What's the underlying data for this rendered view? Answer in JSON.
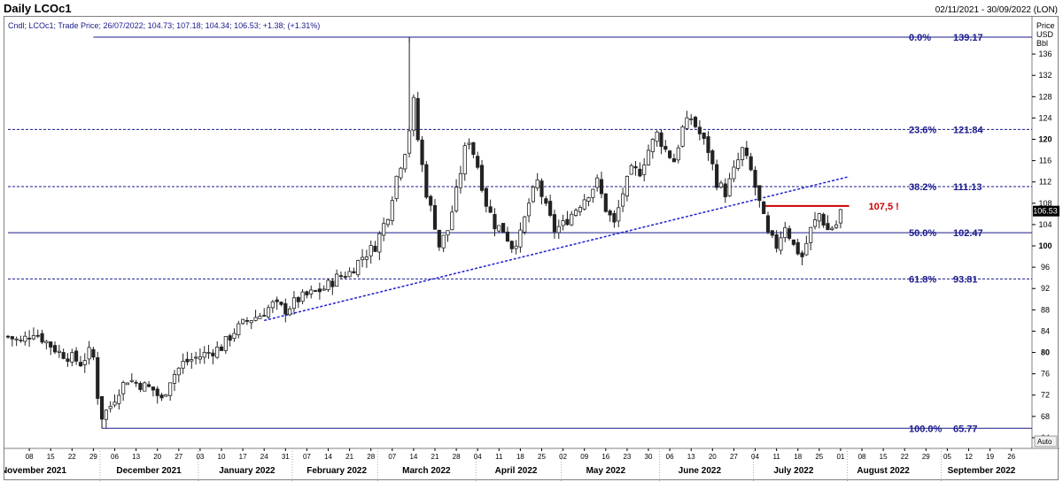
{
  "header": {
    "title": "Daily LCOc1",
    "date_range": "02/11/2021 - 30/09/2022 (LON)",
    "instrument_line": "Cndl; LCOc1; Trade Price; 26/07/2022; 104.73; 107.18; 104.34; 106.53; +1.38; (+1.31%)"
  },
  "axis": {
    "units": [
      "Price",
      "USD",
      "Bbl"
    ],
    "auto_label": "Auto"
  },
  "colors": {
    "fib_line": "#1a1a8c",
    "fib_text": "#1a1a8c",
    "trendline": "#1f1fd0",
    "resistance": "#cc0000",
    "candle": "#222222"
  },
  "chart_data": {
    "type": "candlestick",
    "instrument": "LCOc1",
    "ylim": [
      62,
      140
    ],
    "y_ticks": [
      64,
      68,
      72,
      76,
      80,
      84,
      88,
      92,
      96,
      100,
      104,
      108,
      112,
      116,
      120,
      124,
      128,
      132,
      136
    ],
    "bold_ticks": [
      80,
      100,
      120
    ],
    "last_price": 106.53,
    "day_ticks": [
      {
        "i": 5,
        "label": "08"
      },
      {
        "i": 10,
        "label": "15"
      },
      {
        "i": 15,
        "label": "22"
      },
      {
        "i": 20,
        "label": "29"
      },
      {
        "i": 25,
        "label": "06"
      },
      {
        "i": 30,
        "label": "13"
      },
      {
        "i": 35,
        "label": "20"
      },
      {
        "i": 40,
        "label": "27"
      },
      {
        "i": 45,
        "label": "03"
      },
      {
        "i": 50,
        "label": "10"
      },
      {
        "i": 55,
        "label": "17"
      },
      {
        "i": 60,
        "label": "24"
      },
      {
        "i": 65,
        "label": "31"
      },
      {
        "i": 70,
        "label": "07"
      },
      {
        "i": 75,
        "label": "14"
      },
      {
        "i": 80,
        "label": "21"
      },
      {
        "i": 85,
        "label": "28"
      },
      {
        "i": 90,
        "label": "07"
      },
      {
        "i": 95,
        "label": "14"
      },
      {
        "i": 100,
        "label": "21"
      },
      {
        "i": 105,
        "label": "28"
      },
      {
        "i": 110,
        "label": "04"
      },
      {
        "i": 115,
        "label": "11"
      },
      {
        "i": 120,
        "label": "18"
      },
      {
        "i": 125,
        "label": "25"
      },
      {
        "i": 130,
        "label": "02"
      },
      {
        "i": 135,
        "label": "09"
      },
      {
        "i": 140,
        "label": "16"
      },
      {
        "i": 145,
        "label": "23"
      },
      {
        "i": 150,
        "label": "30"
      },
      {
        "i": 155,
        "label": "06"
      },
      {
        "i": 160,
        "label": "13"
      },
      {
        "i": 165,
        "label": "20"
      },
      {
        "i": 170,
        "label": "27"
      },
      {
        "i": 175,
        "label": "04"
      },
      {
        "i": 180,
        "label": "11"
      },
      {
        "i": 185,
        "label": "18"
      },
      {
        "i": 190,
        "label": "25"
      },
      {
        "i": 195,
        "label": "01"
      },
      {
        "i": 200,
        "label": "08"
      },
      {
        "i": 205,
        "label": "15"
      },
      {
        "i": 210,
        "label": "22"
      },
      {
        "i": 215,
        "label": "29"
      },
      {
        "i": 220,
        "label": "05"
      },
      {
        "i": 225,
        "label": "12"
      },
      {
        "i": 230,
        "label": "19"
      },
      {
        "i": 235,
        "label": "26"
      }
    ],
    "month_labels": [
      {
        "i": 6,
        "label": "November 2021"
      },
      {
        "i": 33,
        "label": "December 2021"
      },
      {
        "i": 56,
        "label": "January 2022"
      },
      {
        "i": 77,
        "label": "February 2022"
      },
      {
        "i": 98,
        "label": "March 2022"
      },
      {
        "i": 119,
        "label": "April 2022"
      },
      {
        "i": 140,
        "label": "May 2022"
      },
      {
        "i": 162,
        "label": "June 2022"
      },
      {
        "i": 184,
        "label": "July 2022"
      },
      {
        "i": 205,
        "label": "August 2022"
      },
      {
        "i": 228,
        "label": "September 2022"
      }
    ],
    "month_separators": [
      22,
      45,
      67,
      87,
      110,
      130,
      153,
      175,
      197,
      219
    ],
    "fibonacci": [
      {
        "pct": "0.0%",
        "price": 139.17,
        "label": "139.17",
        "style": "solid",
        "i0": 20
      },
      {
        "pct": "23.6%",
        "price": 121.84,
        "label": "121.84",
        "style": "dashed",
        "i0": 0
      },
      {
        "pct": "38.2%",
        "price": 111.13,
        "label": "111.13",
        "style": "dashed",
        "i0": 0
      },
      {
        "pct": "50.0%",
        "price": 102.47,
        "label": "102.47",
        "style": "solid",
        "i0": 0
      },
      {
        "pct": "61.8%",
        "price": 93.81,
        "label": "93.81",
        "style": "dashed",
        "i0": 0
      },
      {
        "pct": "100.0%",
        "price": 65.77,
        "label": "65.77",
        "style": "solid",
        "i0": 22
      }
    ],
    "fib_swing": {
      "high_i": 94,
      "high": 139.17,
      "low_i": 22,
      "low": 65.77
    },
    "trendline": {
      "i0": 60,
      "p0": 86.0,
      "i1": 197,
      "p1": 113.0
    },
    "resistance": {
      "i0": 177,
      "i1": 197,
      "price": 107.5,
      "label": "107,5 !"
    },
    "anchors": [
      [
        0,
        83
      ],
      [
        3,
        82
      ],
      [
        6,
        84
      ],
      [
        9,
        82
      ],
      [
        12,
        80
      ],
      [
        15,
        79
      ],
      [
        17,
        78
      ],
      [
        19,
        80
      ],
      [
        20,
        79
      ],
      [
        21,
        72
      ],
      [
        22,
        68
      ],
      [
        24,
        70
      ],
      [
        26,
        73
      ],
      [
        28,
        75
      ],
      [
        31,
        74
      ],
      [
        34,
        73
      ],
      [
        36,
        71
      ],
      [
        38,
        75
      ],
      [
        41,
        78
      ],
      [
        44,
        79
      ],
      [
        47,
        80
      ],
      [
        50,
        81
      ],
      [
        53,
        84
      ],
      [
        56,
        86
      ],
      [
        59,
        87
      ],
      [
        62,
        89
      ],
      [
        65,
        88
      ],
      [
        68,
        90
      ],
      [
        71,
        91
      ],
      [
        74,
        92
      ],
      [
        77,
        94
      ],
      [
        80,
        95
      ],
      [
        83,
        98
      ],
      [
        86,
        100
      ],
      [
        89,
        106
      ],
      [
        91,
        113
      ],
      [
        93,
        118
      ],
      [
        94,
        122
      ],
      [
        95,
        127
      ],
      [
        96,
        120
      ],
      [
        98,
        110
      ],
      [
        100,
        104
      ],
      [
        101,
        100
      ],
      [
        103,
        103
      ],
      [
        105,
        110
      ],
      [
        107,
        118
      ],
      [
        108,
        120
      ],
      [
        110,
        115
      ],
      [
        112,
        108
      ],
      [
        114,
        104
      ],
      [
        116,
        103
      ],
      [
        118,
        100
      ],
      [
        120,
        102
      ],
      [
        122,
        108
      ],
      [
        124,
        112
      ],
      [
        126,
        107
      ],
      [
        128,
        103
      ],
      [
        130,
        104
      ],
      [
        132,
        106
      ],
      [
        134,
        108
      ],
      [
        136,
        110
      ],
      [
        138,
        112
      ],
      [
        140,
        107
      ],
      [
        142,
        104
      ],
      [
        144,
        110
      ],
      [
        146,
        114
      ],
      [
        148,
        114
      ],
      [
        150,
        118
      ],
      [
        152,
        121
      ],
      [
        154,
        118
      ],
      [
        156,
        116
      ],
      [
        158,
        122
      ],
      [
        160,
        124
      ],
      [
        162,
        121
      ],
      [
        164,
        118
      ],
      [
        166,
        112
      ],
      [
        168,
        110
      ],
      [
        170,
        114
      ],
      [
        172,
        118
      ],
      [
        174,
        114
      ],
      [
        176,
        108
      ],
      [
        178,
        102
      ],
      [
        180,
        100
      ],
      [
        182,
        104
      ],
      [
        184,
        100
      ],
      [
        186,
        98
      ],
      [
        188,
        103
      ],
      [
        190,
        106
      ],
      [
        192,
        103
      ],
      [
        194,
        104
      ],
      [
        195,
        106.5
      ]
    ]
  }
}
